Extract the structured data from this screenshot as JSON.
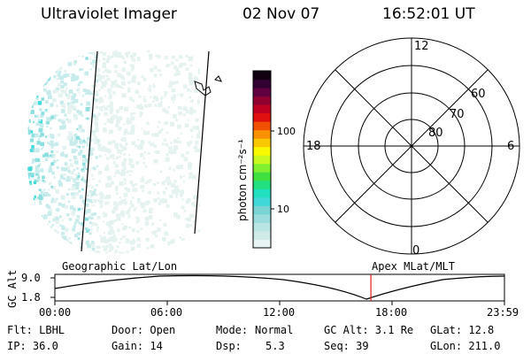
{
  "header": {
    "title": "Ultraviolet Imager",
    "date": "02 Nov 07",
    "time": "16:52:01 UT"
  },
  "colorbar": {
    "label": "photon cm⁻²s⁻¹",
    "scale": "log",
    "ticks": [
      "100",
      "10"
    ],
    "colors": [
      "#e8f4f4",
      "#d0eaea",
      "#b8e4e4",
      "#9adcdc",
      "#7ad4d4",
      "#40d8d8",
      "#20e0c0",
      "#20e080",
      "#40e040",
      "#80f030",
      "#c8f820",
      "#f8f800",
      "#f8c800",
      "#f89000",
      "#f05000",
      "#e01010",
      "#c00020",
      "#900030",
      "#600040",
      "#300030",
      "#100010"
    ]
  },
  "polar": {
    "lat_labels": [
      "60",
      "70",
      "80"
    ],
    "mlt_labels": {
      "top": "12",
      "bottom": "0",
      "left": "18",
      "right": "6"
    }
  },
  "timeline": {
    "ylabel": "GC Alt",
    "yticks": [
      "9.0",
      "1.8"
    ],
    "left_title": "Geographic Lat/Lon",
    "right_title": "Apex MLat/MLT",
    "xticks": [
      "00:00",
      "06:00",
      "12:00",
      "18:00",
      "23:59"
    ],
    "current_time_hours": 16.87,
    "marker_color": "#e02020"
  },
  "info": {
    "filter": "Flt: LBHL",
    "ip": "IP: 36.0",
    "door": "Door: Open",
    "gain": "Gain: 14",
    "mode_label": "Mode:",
    "mode_value": "Normal",
    "dsp_label": "Dsp:",
    "dsp_value": "5.3",
    "gc_alt": "GC Alt: 3.1 Re",
    "seq": "Seq: 39",
    "glat": "GLat:  12.8",
    "glon": "GLon: 211.0"
  }
}
